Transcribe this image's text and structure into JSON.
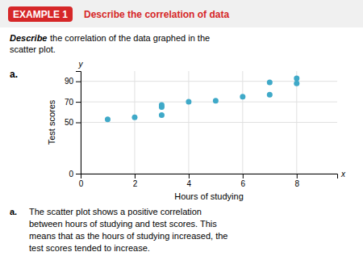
{
  "chart_data": {
    "type": "scatter",
    "title": "Describe the correlation of data",
    "x_label": "Hours of studying",
    "y_label": "Test scores",
    "x": [
      1,
      2,
      3,
      3,
      3,
      4,
      5,
      6,
      7,
      7,
      8,
      8
    ],
    "values": [
      53,
      55,
      65,
      67,
      57,
      70,
      71,
      75,
      77,
      89,
      88,
      93
    ],
    "color": "#3fa9c8",
    "xlim": [
      0,
      9.5
    ],
    "ylim": [
      0,
      100
    ],
    "xticks": [
      0,
      2,
      4,
      6,
      8
    ],
    "yticks": [
      0,
      50,
      70,
      90
    ],
    "grid": true,
    "annotations": [
      "EXAMPLE 1",
      "Describe",
      "the correlation of the data graphed in the",
      "scatter plot.",
      "a.",
      "y",
      "x",
      "a.",
      "The scatter plot shows a positive correlation",
      "between hours of studying and test scores. This",
      "means that as the hours of studying increased, the",
      "test scores tended to increase."
    ]
  }
}
